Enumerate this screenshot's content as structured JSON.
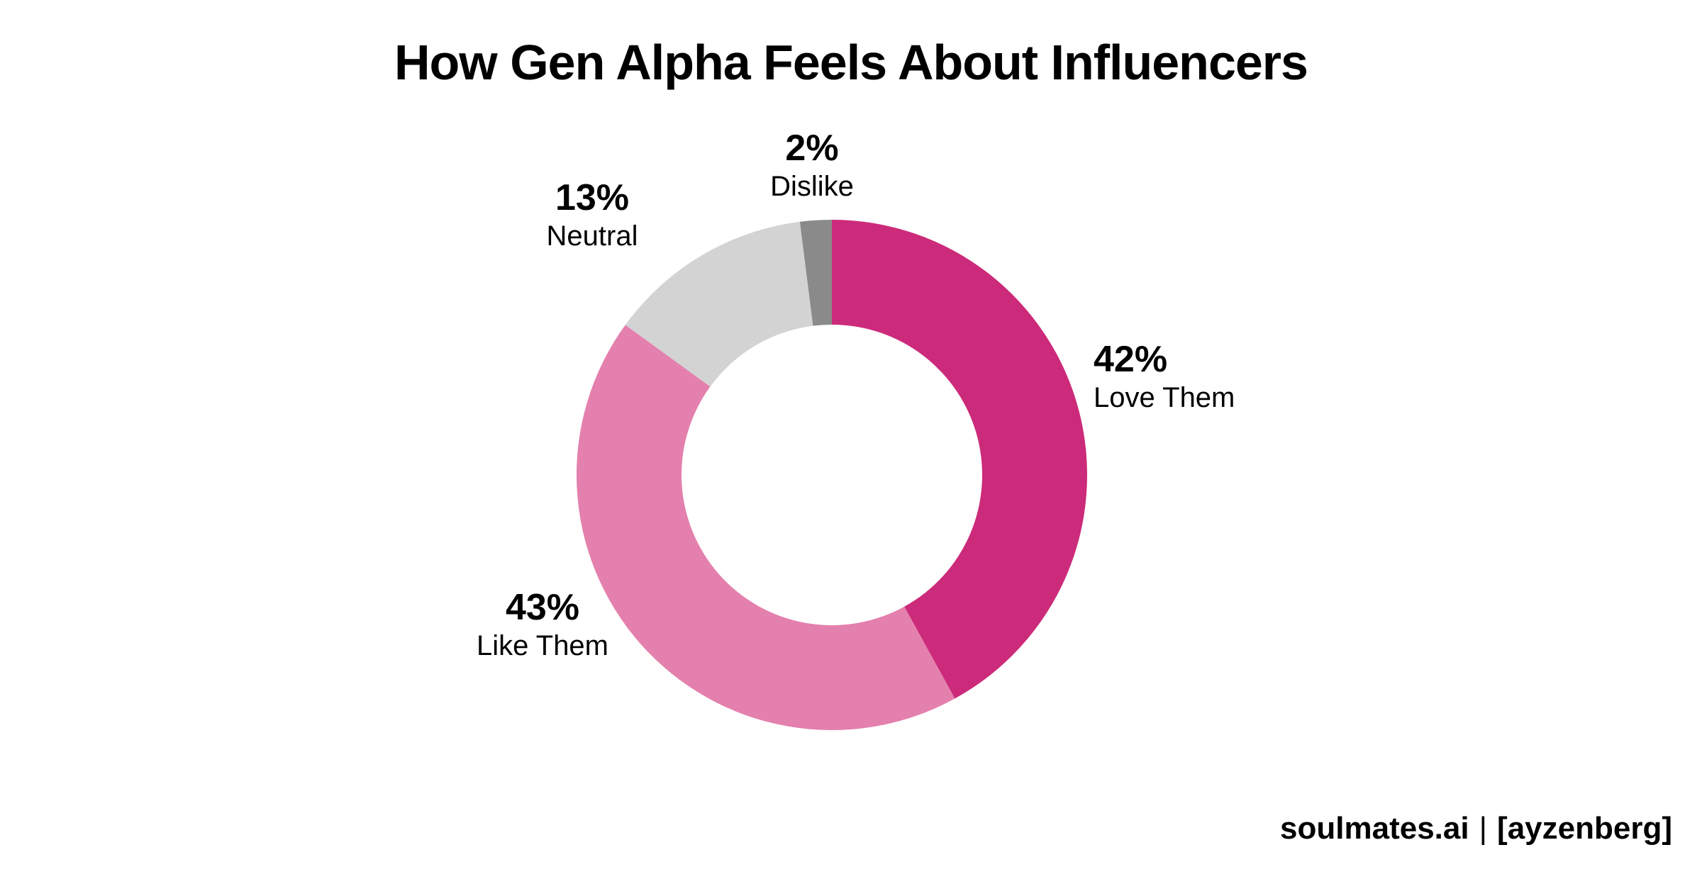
{
  "chart_data": {
    "type": "pie",
    "variant": "donut",
    "title": "How Gen Alpha Feels About Influencers",
    "slices": [
      {
        "label": "Love Them",
        "value": 42,
        "display": "42%",
        "color": "#CC2A7A"
      },
      {
        "label": "Like Them",
        "value": 43,
        "display": "43%",
        "color": "#E480AD"
      },
      {
        "label": "Neutral",
        "value": 13,
        "display": "13%",
        "color": "#D3D3D3"
      },
      {
        "label": "Dislike",
        "value": 2,
        "display": "2%",
        "color": "#8A8A8A"
      }
    ],
    "start": "12 o'clock",
    "direction": "clockwise",
    "legend": "none"
  },
  "footer": {
    "brand": "soulmates.ai",
    "separator": "|",
    "partner": "[ayzenberg]"
  }
}
